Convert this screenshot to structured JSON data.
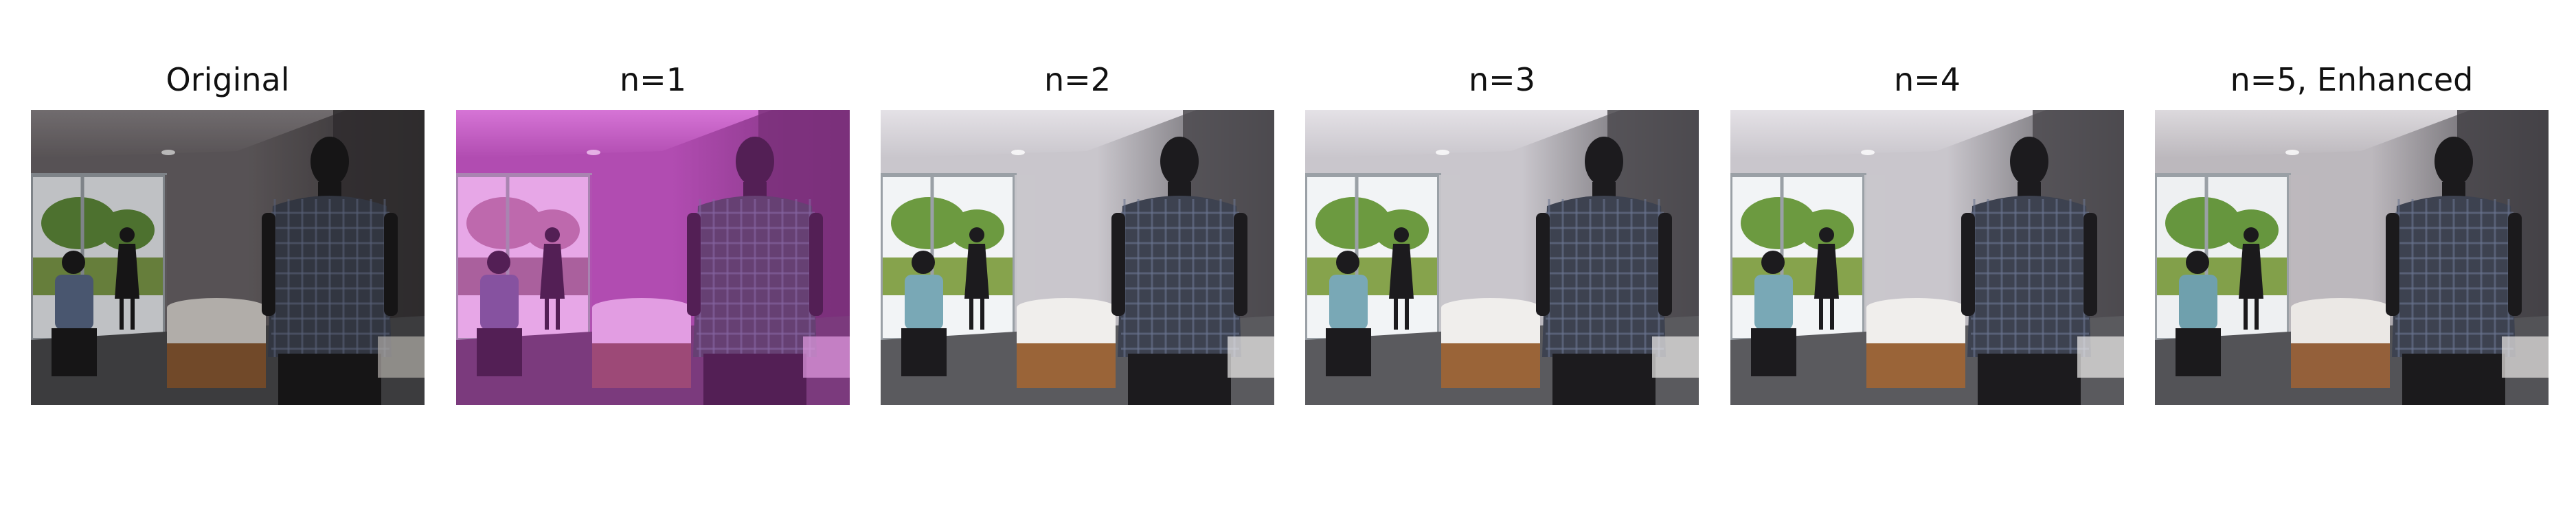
{
  "figure": {
    "panels": [
      {
        "title": "Original",
        "tint": "none"
      },
      {
        "title": "n=1",
        "tint": "magenta"
      },
      {
        "title": "n=2",
        "tint": "light"
      },
      {
        "title": "n=3",
        "tint": "light"
      },
      {
        "title": "n=4",
        "tint": "light"
      },
      {
        "title": "n=5, Enhanced",
        "tint": "neutral"
      }
    ],
    "colors": {
      "background": "#ffffff",
      "title_text": "#111111",
      "magenta_tint": "#d23cd2"
    }
  }
}
